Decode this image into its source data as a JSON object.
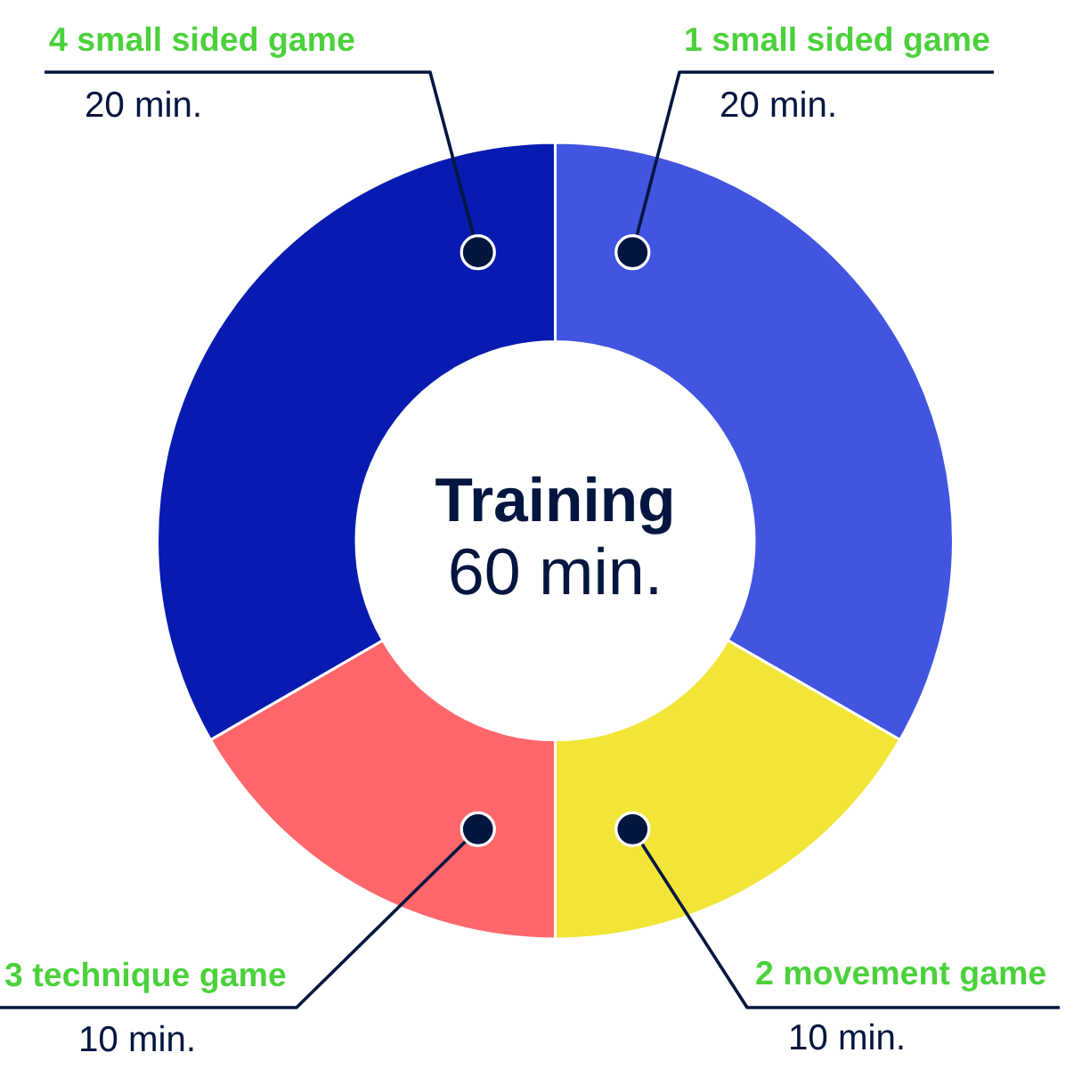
{
  "chart_data": {
    "type": "donut",
    "title": "Training",
    "subtitle": "60 min.",
    "categories": [
      "1 small sided game",
      "2 movement game",
      "3 technique game",
      "4 small sided game"
    ],
    "values": [
      20,
      10,
      10,
      20
    ],
    "colors": [
      "#4155e0",
      "#f3e537",
      "#ff676b",
      "#071bb0"
    ],
    "value_labels": [
      "20 min.",
      "10 min.",
      "10 min.",
      "20 min."
    ]
  }
}
